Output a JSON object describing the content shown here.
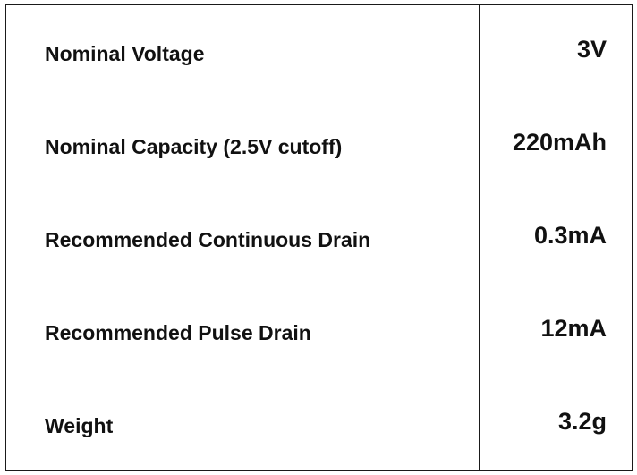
{
  "spec_table": {
    "rows": [
      {
        "label": "Nominal Voltage",
        "value": "3V"
      },
      {
        "label": "Nominal Capacity (2.5V cutoff)",
        "value": "220mAh"
      },
      {
        "label": "Recommended Continuous Drain",
        "value": "0.3mA"
      },
      {
        "label": "Recommended Pulse Drain",
        "value": "12mA"
      },
      {
        "label": "Weight",
        "value": "3.2g"
      }
    ]
  }
}
